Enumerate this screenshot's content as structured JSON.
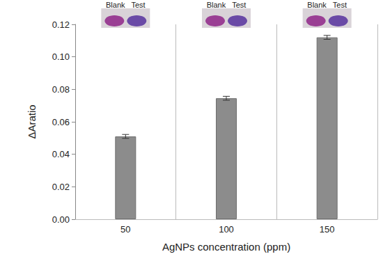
{
  "chart_data": {
    "type": "bar",
    "xlabel": "AgNPs concentration (ppm)",
    "ylabel": "ΔAratio",
    "categories": [
      "50",
      "100",
      "150"
    ],
    "values": [
      0.051,
      0.0745,
      0.112
    ],
    "errors": [
      0.0012,
      0.0012,
      0.0012
    ],
    "color": "#8c8c8c",
    "ylim": [
      0,
      0.12
    ],
    "yticks": [
      {
        "value": 0,
        "label": "0.00"
      },
      {
        "value": 0.02,
        "label": "0.02"
      },
      {
        "value": 0.04,
        "label": "0.04"
      },
      {
        "value": 0.06,
        "label": "0.06"
      },
      {
        "value": 0.08,
        "label": "0.08"
      },
      {
        "value": 0.1,
        "label": "0.10"
      },
      {
        "value": 0.12,
        "label": "0.12"
      }
    ],
    "grid": true,
    "annotations": [
      {
        "category": "50",
        "text": "Blank   Test"
      },
      {
        "category": "100",
        "text": "Blank   Test"
      },
      {
        "category": "150",
        "text": "Blank   Test"
      }
    ]
  }
}
